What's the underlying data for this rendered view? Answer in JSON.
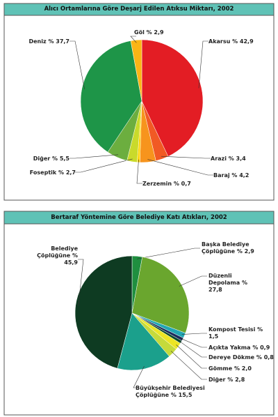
{
  "chart_data": [
    {
      "type": "pie",
      "title": "Alıcı Ortamlarına Göre Deşarj Edilen Atıksu Miktarı, 2002",
      "categories": [
        "Akarsu",
        "Arazi",
        "Baraj",
        "Zerzemin",
        "Foseptik",
        "Diğer",
        "Deniz",
        "Göl"
      ],
      "values": [
        42.9,
        3.4,
        4.2,
        0.7,
        2.7,
        5.5,
        37.7,
        2.9
      ],
      "value_labels": [
        "% 42,9",
        "% 3,4",
        "% 4,2",
        "% 0,7",
        "% 2,7",
        "% 5,5",
        "% 37,7",
        "% 2,9"
      ],
      "colors": [
        "#e31d24",
        "#f15a24",
        "#f7941d",
        "#ffd400",
        "#c9da2b",
        "#6cae3f",
        "#1e9548",
        "#fbb515"
      ]
    },
    {
      "type": "pie",
      "title": "Bertaraf Yöntemine Göre Belediye Katı Atıkları, 2002",
      "categories": [
        "Başka Belediye Çöplüğüne",
        "Düzenli Depolama",
        "Kompost Tesisi",
        "Açıkta Yakma",
        "Dereye Dökme",
        "Gömme",
        "Diğer",
        "Büyükşehir Belediyesi Çöplüğüne",
        "Belediye Çöplüğüne"
      ],
      "values": [
        2.9,
        27.8,
        1.5,
        0.9,
        0.8,
        2.0,
        2.8,
        15.5,
        45.9
      ],
      "value_labels": [
        "% 2,9",
        "% 27,8",
        "% 1,5",
        "% 0,9",
        "% 0,8",
        "% 2,0",
        "% 2,8",
        "% 15,5",
        "% 45,9"
      ],
      "colors": [
        "#1f8f3f",
        "#6aa62e",
        "#22a6b3",
        "#1b2b5c",
        "#0c4a2c",
        "#ece524",
        "#c5da3b",
        "#1ba08c",
        "#0e3b22"
      ]
    }
  ]
}
